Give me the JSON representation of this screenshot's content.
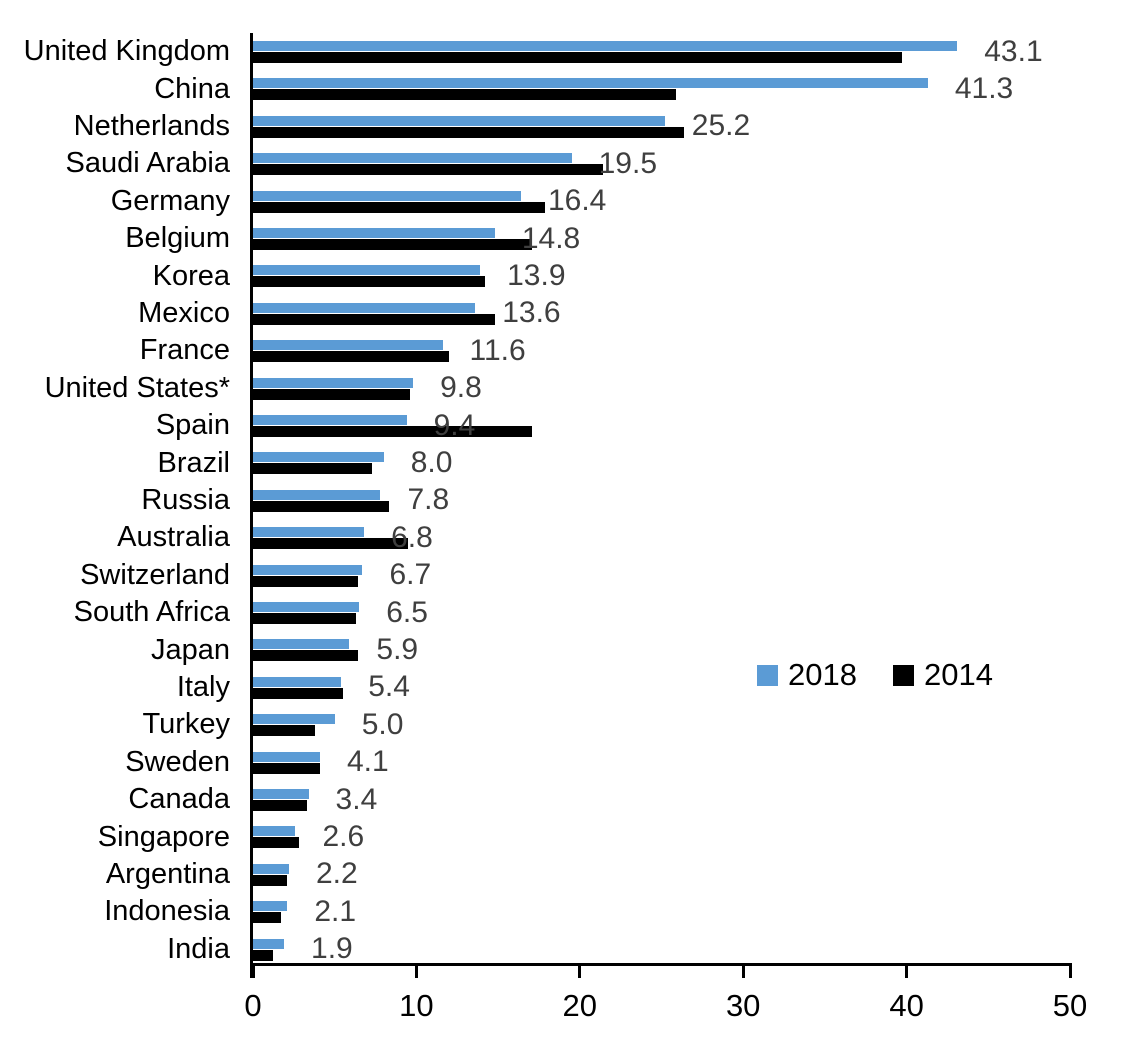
{
  "chart_data": {
    "type": "bar",
    "orientation": "horizontal",
    "title": "",
    "categories": [
      "United Kingdom",
      "China",
      "Netherlands",
      "Saudi Arabia",
      "Germany",
      "Belgium",
      "Korea",
      "Mexico",
      "France",
      "United States*",
      "Spain",
      "Brazil",
      "Russia",
      "Australia",
      "Switzerland",
      "South Africa",
      "Japan",
      "Italy",
      "Turkey",
      "Sweden",
      "Canada",
      "Singapore",
      "Argentina",
      "Indonesia",
      "India"
    ],
    "series": [
      {
        "name": "2018",
        "color": "#5B9BD5",
        "values": [
          43.1,
          41.3,
          25.2,
          19.5,
          16.4,
          14.8,
          13.9,
          13.6,
          11.6,
          9.8,
          9.4,
          8.0,
          7.8,
          6.8,
          6.7,
          6.5,
          5.9,
          5.4,
          5.0,
          4.1,
          3.4,
          2.6,
          2.2,
          2.1,
          1.9
        ]
      },
      {
        "name": "2014",
        "color": "#000000",
        "values": [
          39.7,
          25.9,
          26.4,
          21.4,
          17.9,
          17.1,
          14.2,
          14.8,
          12.0,
          9.6,
          17.1,
          7.3,
          8.3,
          9.5,
          6.4,
          6.3,
          6.4,
          5.5,
          3.8,
          4.1,
          3.3,
          2.8,
          2.1,
          1.7,
          1.2
        ]
      }
    ],
    "data_labels": {
      "series": "2018",
      "values": [
        "43.1",
        "41.3",
        "25.2",
        "19.5",
        "16.4",
        "14.8",
        "13.9",
        "13.6",
        "11.6",
        "9.8",
        "9.4",
        "8.0",
        "7.8",
        "6.8",
        "6.7",
        "6.5",
        "5.9",
        "5.4",
        "5.0",
        "4.1",
        "3.4",
        "2.6",
        "2.2",
        "2.1",
        "1.9"
      ],
      "color": "#3F3F3F"
    },
    "xlabel": "",
    "ylabel": "",
    "xlim": [
      0,
      50
    ],
    "x_ticks": [
      "0",
      "10",
      "20",
      "30",
      "40",
      "50"
    ],
    "grid": false,
    "legend": {
      "position": "center-right",
      "entries": [
        "2018",
        "2014"
      ]
    }
  },
  "colors": {
    "background": "#FFFFFF",
    "axis": "#000000",
    "category_text": "#000000",
    "tick_text": "#000000",
    "bar_2018": "#5B9BD5",
    "bar_2014": "#000000"
  }
}
